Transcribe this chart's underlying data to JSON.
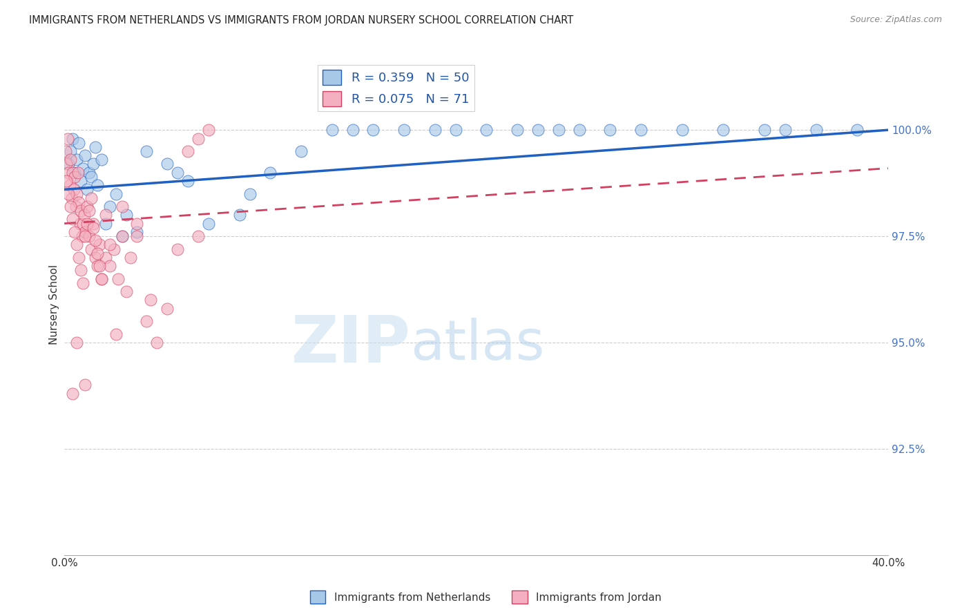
{
  "title": "IMMIGRANTS FROM NETHERLANDS VS IMMIGRANTS FROM JORDAN NURSERY SCHOOL CORRELATION CHART",
  "source": "Source: ZipAtlas.com",
  "ylabel": "Nursery School",
  "ytick_labels": [
    "92.5%",
    "95.0%",
    "97.5%",
    "100.0%"
  ],
  "ytick_values": [
    92.5,
    95.0,
    97.5,
    100.0
  ],
  "xmin": 0.0,
  "xmax": 40.0,
  "ymin": 90.0,
  "ymax": 101.8,
  "legend_label1": "Immigrants from Netherlands",
  "legend_label2": "Immigrants from Jordan",
  "r1": 0.359,
  "n1": 50,
  "r2": 0.075,
  "n2": 71,
  "color_blue": "#a8c8e8",
  "color_pink": "#f4b0c0",
  "color_blue_line": "#2060c0",
  "color_pink_line": "#d04060",
  "watermark_zip": "ZIP",
  "watermark_atlas": "atlas",
  "netherlands_x": [
    0.2,
    0.3,
    0.4,
    0.5,
    0.6,
    0.7,
    0.8,
    0.9,
    1.0,
    1.1,
    1.2,
    1.3,
    1.4,
    1.5,
    1.6,
    1.8,
    2.0,
    2.2,
    2.5,
    2.8,
    3.0,
    3.5,
    4.0,
    5.0,
    5.5,
    6.0,
    7.0,
    8.5,
    9.0,
    10.0,
    11.5,
    13.0,
    14.0,
    15.0,
    16.5,
    18.0,
    19.0,
    20.5,
    22.0,
    23.0,
    24.0,
    25.0,
    26.5,
    28.0,
    30.0,
    32.0,
    34.0,
    35.0,
    36.5,
    38.5
  ],
  "netherlands_y": [
    99.2,
    99.5,
    99.8,
    99.0,
    99.3,
    99.7,
    98.8,
    99.1,
    99.4,
    98.6,
    99.0,
    98.9,
    99.2,
    99.6,
    98.7,
    99.3,
    97.8,
    98.2,
    98.5,
    97.5,
    98.0,
    97.6,
    99.5,
    99.2,
    99.0,
    98.8,
    97.8,
    98.0,
    98.5,
    99.0,
    99.5,
    100.0,
    100.0,
    100.0,
    100.0,
    100.0,
    100.0,
    100.0,
    100.0,
    100.0,
    100.0,
    100.0,
    100.0,
    100.0,
    100.0,
    100.0,
    100.0,
    100.0,
    100.0,
    100.0
  ],
  "jordan_x": [
    0.05,
    0.1,
    0.15,
    0.2,
    0.25,
    0.3,
    0.35,
    0.4,
    0.45,
    0.5,
    0.55,
    0.6,
    0.65,
    0.7,
    0.75,
    0.8,
    0.85,
    0.9,
    0.95,
    1.0,
    1.1,
    1.2,
    1.3,
    1.4,
    1.5,
    1.6,
    1.7,
    1.8,
    2.0,
    2.2,
    2.4,
    2.6,
    2.8,
    3.0,
    3.2,
    3.5,
    4.0,
    4.5,
    5.0,
    5.5,
    6.0,
    6.5,
    7.0,
    0.1,
    0.2,
    0.3,
    0.4,
    0.5,
    0.6,
    0.7,
    0.8,
    0.9,
    1.0,
    1.1,
    1.2,
    1.3,
    1.4,
    1.5,
    1.6,
    1.7,
    1.8,
    2.0,
    2.2,
    2.8,
    3.5,
    1.0,
    2.5,
    0.4,
    0.6,
    4.2,
    6.5
  ],
  "jordan_y": [
    99.5,
    99.2,
    99.8,
    99.0,
    98.7,
    99.3,
    98.4,
    99.0,
    98.6,
    98.9,
    98.2,
    98.5,
    99.0,
    98.3,
    97.8,
    98.1,
    97.5,
    97.8,
    98.0,
    97.6,
    98.2,
    97.5,
    97.2,
    97.8,
    97.0,
    96.8,
    97.3,
    96.5,
    97.0,
    96.8,
    97.2,
    96.5,
    97.5,
    96.2,
    97.0,
    97.5,
    95.5,
    95.0,
    95.8,
    97.2,
    99.5,
    99.8,
    100.0,
    98.8,
    98.5,
    98.2,
    97.9,
    97.6,
    97.3,
    97.0,
    96.7,
    96.4,
    97.5,
    97.8,
    98.1,
    98.4,
    97.7,
    97.4,
    97.1,
    96.8,
    96.5,
    98.0,
    97.3,
    98.2,
    97.8,
    94.0,
    95.2,
    93.8,
    95.0,
    96.0,
    97.5
  ],
  "nl_trend_x0": 0.0,
  "nl_trend_x1": 40.0,
  "nl_trend_y0": 98.6,
  "nl_trend_y1": 100.0,
  "jo_trend_x0": 0.0,
  "jo_trend_x1": 40.0,
  "jo_trend_y0": 97.8,
  "jo_trend_y1": 99.1
}
